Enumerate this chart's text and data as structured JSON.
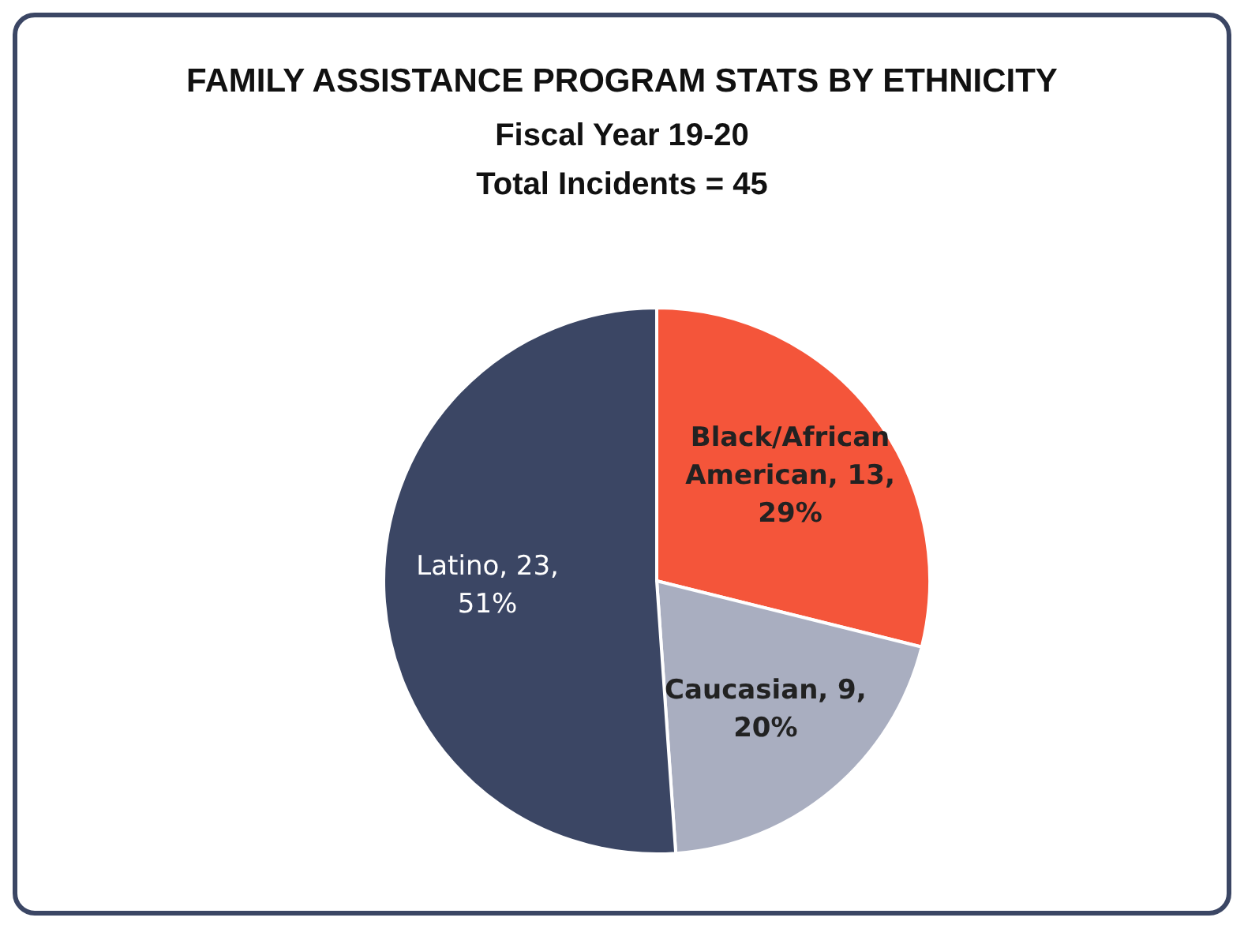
{
  "chart_data": {
    "type": "pie",
    "title": "FAMILY ASSISTANCE PROGRAM STATS BY ETHNICITY",
    "subtitle": "Fiscal Year 19-20",
    "annotations": [
      "Total Incidents = 45"
    ],
    "categories": [
      "Black/African American",
      "Caucasian",
      "Latino"
    ],
    "values": [
      13,
      9,
      23
    ],
    "value_labels": [
      "13, 29%",
      "9, 20%",
      "23, 51%"
    ],
    "colors": [
      "#f4553a",
      "#a9aec0",
      "#3b4664"
    ],
    "legend": false
  }
}
